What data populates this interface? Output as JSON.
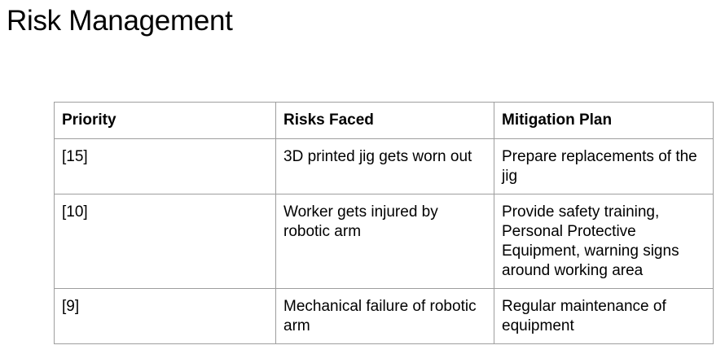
{
  "page": {
    "title": "Risk Management"
  },
  "table": {
    "headers": [
      "Priority",
      "Risks Faced",
      "Mitigation Plan"
    ],
    "rows": [
      {
        "priority": "[15]",
        "risk": "3D printed jig gets worn out",
        "mitigation": "Prepare replacements of the jig"
      },
      {
        "priority": "[10]",
        "risk": "Worker gets injured by robotic arm",
        "mitigation": "Provide safety training, Personal Protective Equipment, warning signs around working area"
      },
      {
        "priority": "[9]",
        "risk": "Mechanical failure of robotic arm",
        "mitigation": "Regular maintenance of equipment"
      }
    ]
  }
}
